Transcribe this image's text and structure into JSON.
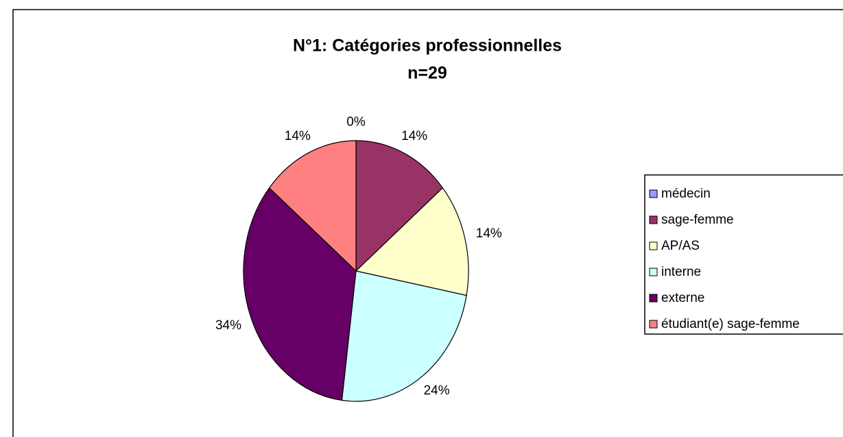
{
  "chart_data": {
    "type": "pie",
    "title": "N°1: Catégories professionnelles",
    "subtitle": "n=29",
    "categories": [
      "médecin",
      "sage-femme",
      "AP/AS",
      "interne",
      "externe",
      "étudiant(e) sage-femme"
    ],
    "values": [
      0,
      14,
      14,
      24,
      34,
      14
    ],
    "value_labels": [
      "0%",
      "14%",
      "14%",
      "24%",
      "34%",
      "14%"
    ],
    "colors": [
      "#9999ff",
      "#993366",
      "#ffffcc",
      "#ccffff",
      "#660066",
      "#ff8080"
    ],
    "legend": "right"
  }
}
